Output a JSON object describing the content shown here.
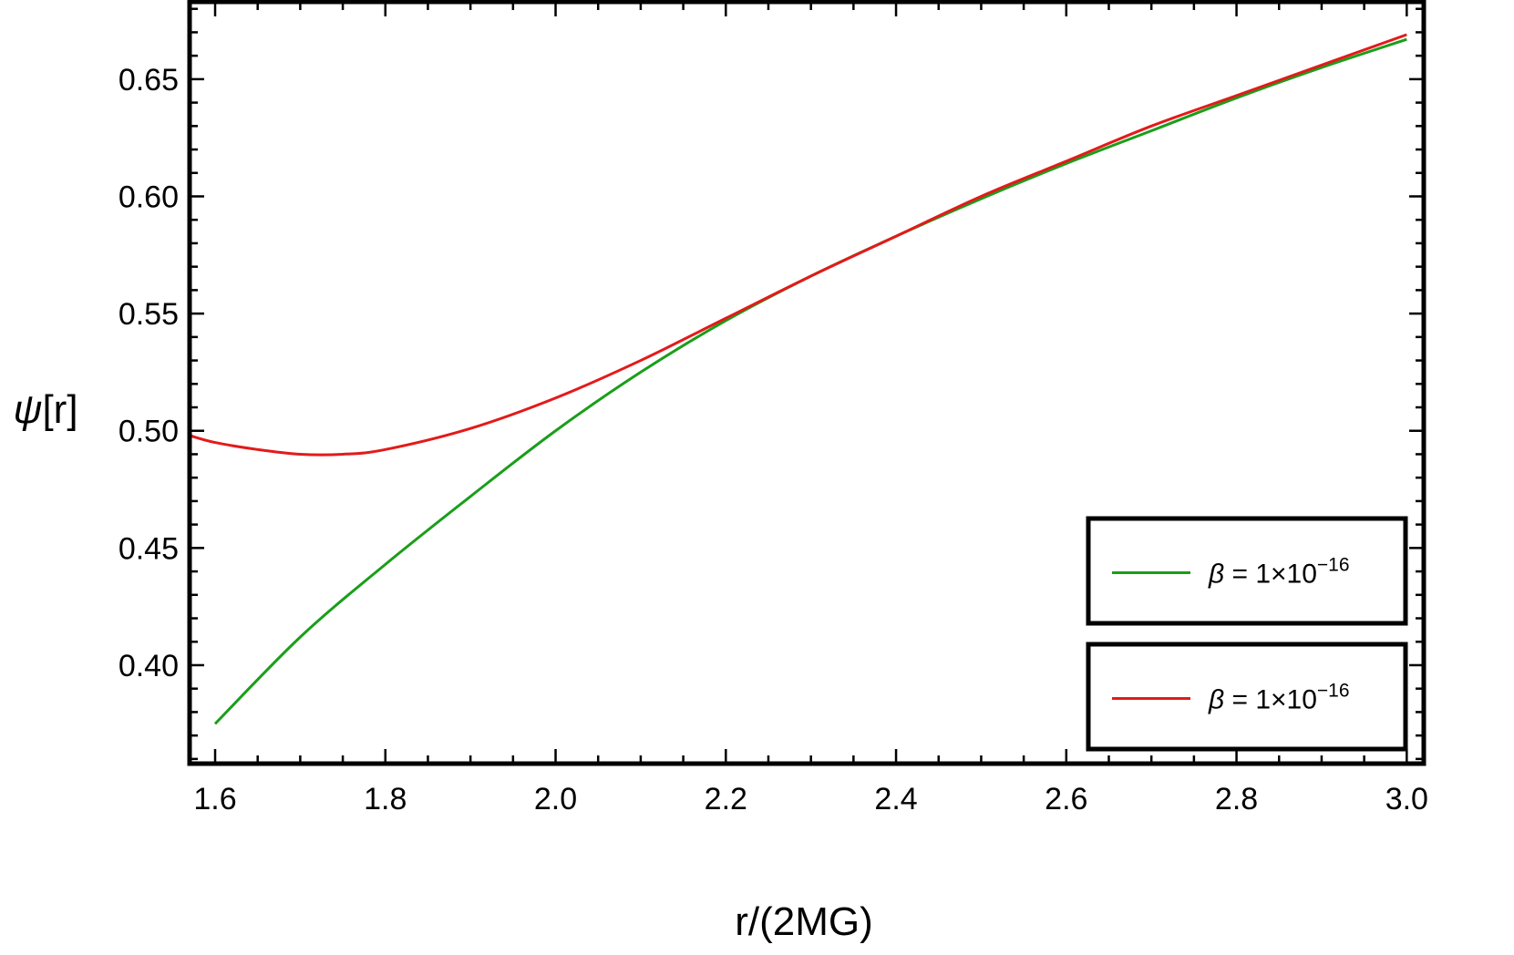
{
  "chart_data": {
    "type": "line",
    "xlabel": "r/(2MG)",
    "ylabel_symbol": "ψ",
    "ylabel_rest": "[r]",
    "xlim": [
      1.57,
      3.02
    ],
    "ylim": [
      0.358,
      0.683
    ],
    "x_ticks": [
      "1.6",
      "1.8",
      "2.0",
      "2.2",
      "2.4",
      "2.6",
      "2.8",
      "3.0"
    ],
    "x_tick_values": [
      1.6,
      1.8,
      2.0,
      2.2,
      2.4,
      2.6,
      2.8,
      3.0
    ],
    "y_ticks": [
      "0.40",
      "0.45",
      "0.50",
      "0.55",
      "0.60",
      "0.65"
    ],
    "y_tick_values": [
      0.4,
      0.45,
      0.5,
      0.55,
      0.6,
      0.65
    ],
    "grid": false,
    "legend_placement": "bottom-right",
    "series": [
      {
        "legend_symbol": "β",
        "legend_rest": " = 1×10",
        "legend_exp": "−16",
        "color": "#1a9e1a",
        "x": [
          1.6,
          1.7,
          1.8,
          1.9,
          2.0,
          2.1,
          2.2,
          2.3,
          2.4,
          2.5,
          2.6,
          2.7,
          2.8,
          2.9,
          3.0
        ],
        "y": [
          0.375,
          0.412,
          0.443,
          0.472,
          0.5,
          0.525,
          0.547,
          0.566,
          0.583,
          0.599,
          0.614,
          0.628,
          0.642,
          0.655,
          0.667
        ]
      },
      {
        "legend_symbol": "β",
        "legend_rest": " = 1×10",
        "legend_exp": "−16",
        "color": "#e31a1a",
        "x": [
          1.57,
          1.6,
          1.65,
          1.7,
          1.75,
          1.8,
          1.9,
          2.0,
          2.1,
          2.2,
          2.3,
          2.4,
          2.5,
          2.6,
          2.7,
          2.8,
          2.9,
          3.0
        ],
        "y": [
          0.498,
          0.495,
          0.492,
          0.49,
          0.49,
          0.492,
          0.501,
          0.514,
          0.53,
          0.548,
          0.566,
          0.583,
          0.6,
          0.615,
          0.63,
          0.643,
          0.656,
          0.669
        ]
      }
    ]
  }
}
